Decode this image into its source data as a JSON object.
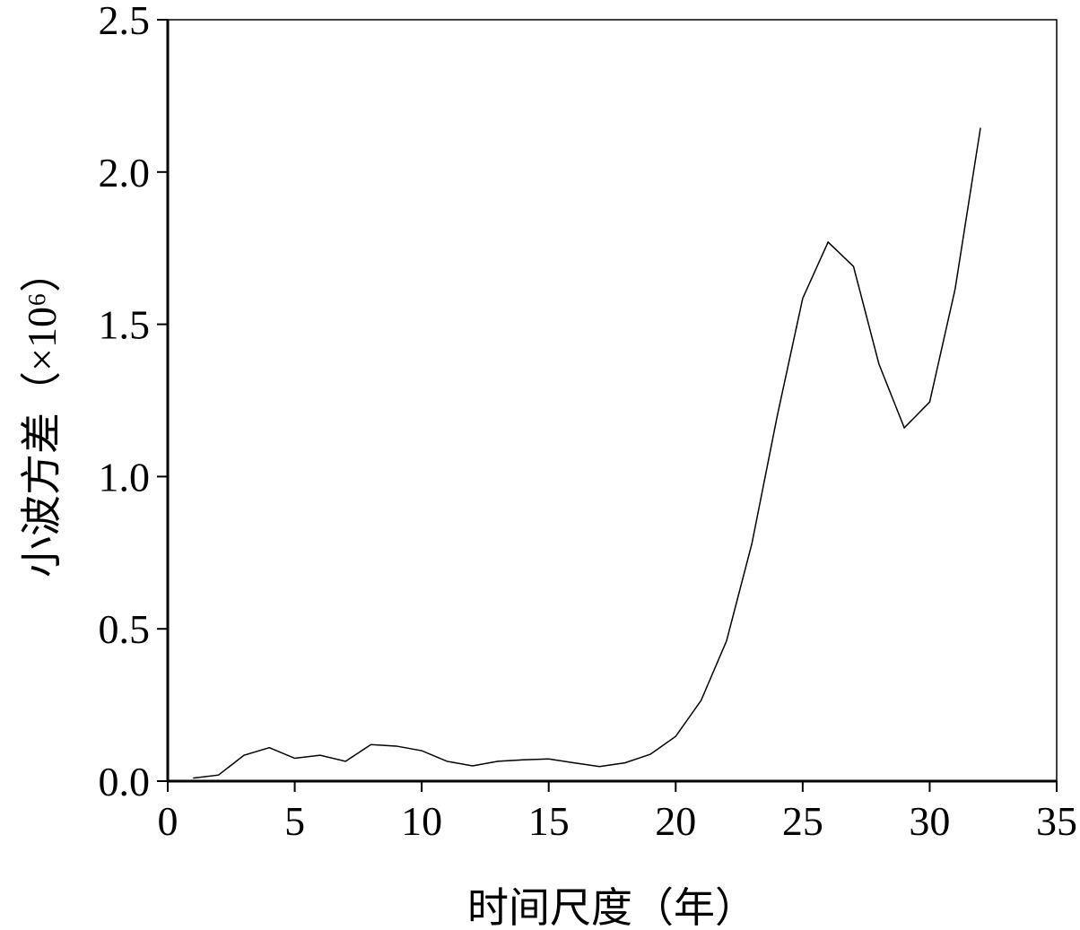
{
  "chart_data": {
    "type": "line",
    "xlabel": "时间尺度（年）",
    "ylabel": "小波方差（×10⁶）",
    "x": [
      1,
      2,
      3,
      4,
      5,
      6,
      7,
      8,
      9,
      10,
      11,
      12,
      13,
      14,
      15,
      16,
      17,
      18,
      19,
      20,
      21,
      22,
      23,
      24,
      25,
      26,
      27,
      28,
      29,
      30,
      31,
      32
    ],
    "values": [
      0.01,
      0.02,
      0.085,
      0.11,
      0.075,
      0.085,
      0.065,
      0.12,
      0.115,
      0.1,
      0.065,
      0.05,
      0.065,
      0.07,
      0.073,
      0.06,
      0.048,
      0.06,
      0.088,
      0.147,
      0.265,
      0.46,
      0.78,
      1.2,
      1.585,
      1.77,
      1.69,
      1.37,
      1.16,
      1.245,
      1.615,
      2.145
    ],
    "color": "#000000",
    "xlim": [
      0,
      35
    ],
    "xticks": [
      0,
      5,
      10,
      15,
      20,
      25,
      30,
      35
    ],
    "ylim": [
      0,
      2.5
    ],
    "yticks": [
      {
        "value": 0,
        "label": "0.0"
      },
      0.5,
      {
        "value": 1,
        "label": "1.0"
      },
      1.5,
      {
        "value": 2,
        "label": "2.0"
      },
      2.5
    ]
  }
}
